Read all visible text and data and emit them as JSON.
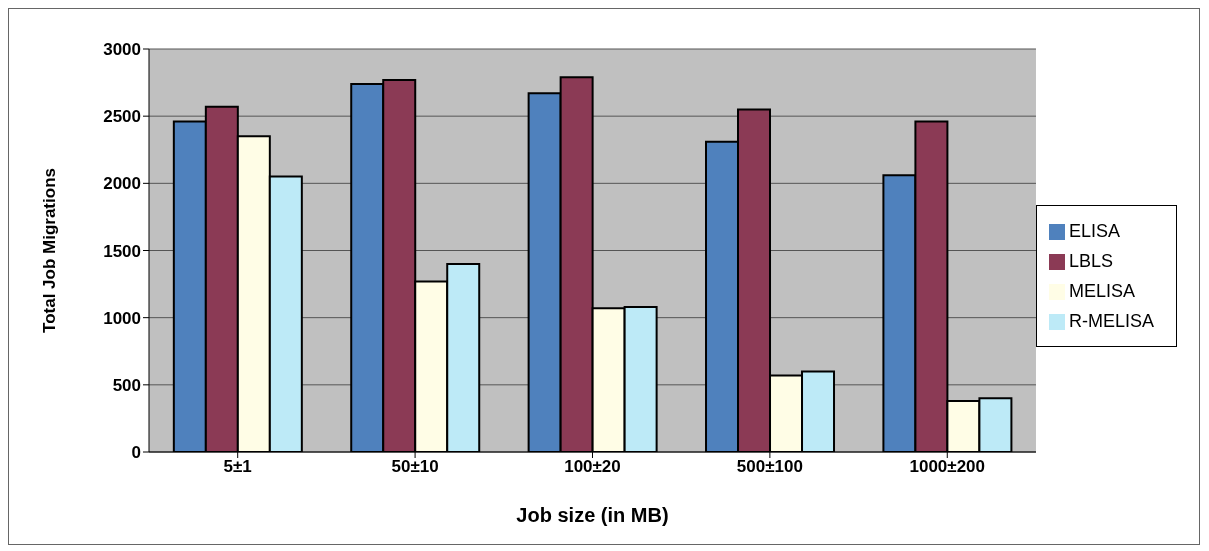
{
  "chart_data": {
    "type": "bar",
    "xlabel": "Job size (in MB)",
    "ylabel": "Total Job Migrations",
    "categories": [
      "5±1",
      "50±10",
      "100±20",
      "500±100",
      "1000±200"
    ],
    "series": [
      {
        "name": "ELISA",
        "color": "#4f81bd",
        "values": [
          2460,
          2740,
          2670,
          2310,
          2060
        ]
      },
      {
        "name": "LBLS",
        "color": "#8b3a55",
        "values": [
          2570,
          2770,
          2790,
          2550,
          2460
        ]
      },
      {
        "name": "MELISA",
        "color": "#fffde6",
        "values": [
          2350,
          1270,
          1070,
          570,
          380
        ]
      },
      {
        "name": "R-MELISA",
        "color": "#bdeaf7",
        "values": [
          2050,
          1400,
          1080,
          600,
          400
        ]
      }
    ],
    "ylim": [
      0,
      3000
    ],
    "yticks": [
      0,
      500,
      1000,
      1500,
      2000,
      2500,
      3000
    ],
    "grid": "y",
    "legend": "right"
  }
}
